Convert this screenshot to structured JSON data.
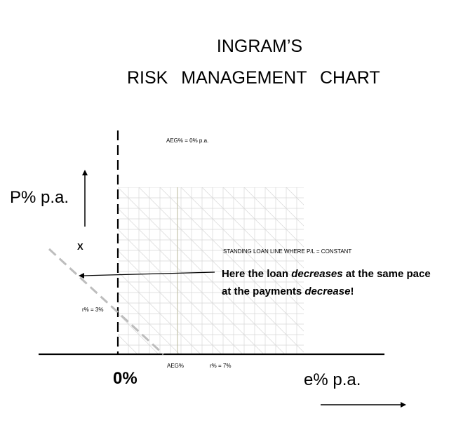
{
  "title": {
    "line1": "INGRAM’S",
    "line2": "RISK MANAGEMENT CHART"
  },
  "axes": {
    "y_label": "P% p.a.",
    "x_label": "e% p.a.",
    "origin_label": "0%"
  },
  "labels": {
    "aeg_top": "AEG% = 0% p.a.",
    "marker_x": "X",
    "standing_line": "STANDING LOAN LINE WHERE P/L = CONSTANT",
    "r3": "r% = 3%",
    "aeg_bottom": "AEG%",
    "r7": "r% = 7%"
  },
  "callout": {
    "part1": "Here the loan ",
    "part2": "decreases",
    "part3": " at the same pace at the payments ",
    "part4": "decrease",
    "part5": "!"
  }
}
